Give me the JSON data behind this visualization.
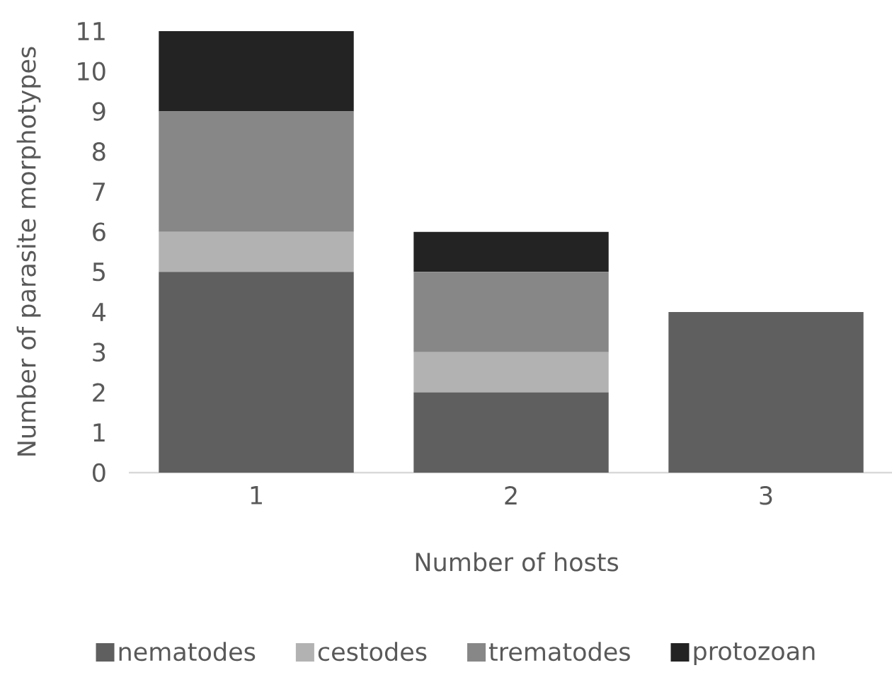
{
  "chart_data": {
    "type": "bar",
    "stacked": true,
    "xlabel": "Number of hosts",
    "ylabel": "Number of parasite morphotypes",
    "categories": [
      "1",
      "2",
      "3"
    ],
    "series": [
      {
        "name": "nematodes",
        "color": "#5f5f5f",
        "values": [
          5,
          2,
          4
        ]
      },
      {
        "name": "cestodes",
        "color": "#b2b2b2",
        "values": [
          1,
          1,
          0
        ]
      },
      {
        "name": "trematodes",
        "color": "#878787",
        "values": [
          3,
          2,
          0
        ]
      },
      {
        "name": "protozoan",
        "color": "#232323",
        "values": [
          2,
          1,
          0
        ]
      }
    ],
    "ylim": [
      0,
      11
    ],
    "yticks": [
      0,
      1,
      2,
      3,
      4,
      5,
      6,
      7,
      8,
      9,
      10,
      11
    ],
    "legend": "bottom"
  }
}
